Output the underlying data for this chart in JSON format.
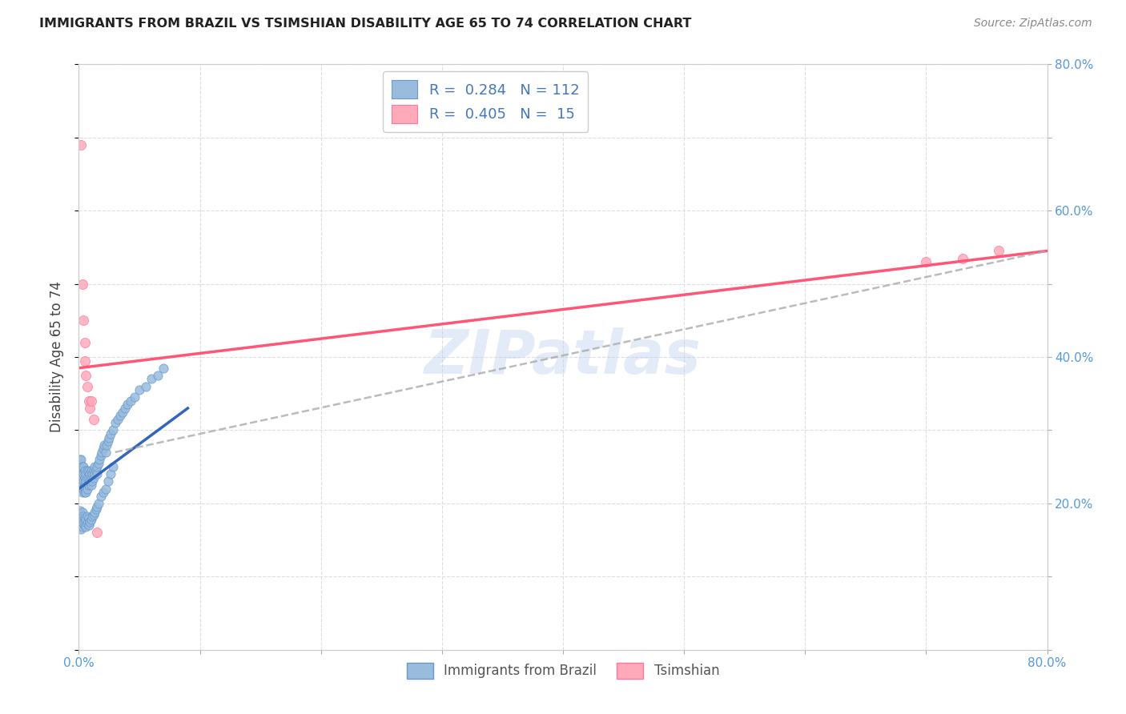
{
  "title": "IMMIGRANTS FROM BRAZIL VS TSIMSHIAN DISABILITY AGE 65 TO 74 CORRELATION CHART",
  "source": "Source: ZipAtlas.com",
  "ylabel": "Disability Age 65 to 74",
  "xlim": [
    0.0,
    0.8
  ],
  "ylim": [
    0.0,
    0.8
  ],
  "brazil_color": "#99BBDD",
  "brazil_edge_color": "#6699CC",
  "tsimshian_color": "#FFAABB",
  "tsimshian_edge_color": "#FF7799",
  "brazil_line_color": "#3366BB",
  "tsimshian_line_color": "#FF5577",
  "dash_line_color": "#AAAAAA",
  "watermark_color": "#BBCCEE",
  "grid_color": "#DDDDDD",
  "tick_color": "#5599DD",
  "background_color": "#ffffff",
  "legend_label_brazil": "Immigrants from Brazil",
  "legend_label_tsimshian": "Tsimshian",
  "brazil_R": "0.284",
  "brazil_N": "112",
  "tsimshian_R": "0.405",
  "tsimshian_N": "15",
  "brazil_scatter_x": [
    0.001,
    0.001,
    0.001,
    0.001,
    0.001,
    0.001,
    0.002,
    0.002,
    0.002,
    0.002,
    0.002,
    0.002,
    0.002,
    0.003,
    0.003,
    0.003,
    0.003,
    0.003,
    0.003,
    0.003,
    0.004,
    0.004,
    0.004,
    0.004,
    0.005,
    0.005,
    0.005,
    0.005,
    0.005,
    0.006,
    0.006,
    0.006,
    0.006,
    0.007,
    0.007,
    0.007,
    0.007,
    0.008,
    0.008,
    0.008,
    0.009,
    0.009,
    0.01,
    0.01,
    0.01,
    0.011,
    0.011,
    0.012,
    0.012,
    0.013,
    0.013,
    0.014,
    0.015,
    0.015,
    0.016,
    0.017,
    0.018,
    0.019,
    0.02,
    0.021,
    0.022,
    0.023,
    0.024,
    0.025,
    0.026,
    0.028,
    0.03,
    0.032,
    0.034,
    0.036,
    0.038,
    0.04,
    0.043,
    0.046,
    0.05,
    0.055,
    0.06,
    0.065,
    0.07,
    0.001,
    0.001,
    0.001,
    0.002,
    0.002,
    0.002,
    0.003,
    0.003,
    0.003,
    0.004,
    0.004,
    0.005,
    0.005,
    0.006,
    0.006,
    0.007,
    0.007,
    0.008,
    0.008,
    0.009,
    0.01,
    0.011,
    0.012,
    0.013,
    0.014,
    0.015,
    0.016,
    0.018,
    0.02,
    0.022,
    0.024,
    0.026,
    0.028
  ],
  "brazil_scatter_y": [
    0.24,
    0.25,
    0.23,
    0.22,
    0.26,
    0.245,
    0.23,
    0.24,
    0.25,
    0.225,
    0.235,
    0.245,
    0.26,
    0.22,
    0.23,
    0.24,
    0.25,
    0.225,
    0.235,
    0.215,
    0.22,
    0.23,
    0.24,
    0.25,
    0.225,
    0.235,
    0.245,
    0.22,
    0.215,
    0.22,
    0.23,
    0.24,
    0.215,
    0.225,
    0.235,
    0.245,
    0.22,
    0.225,
    0.235,
    0.245,
    0.23,
    0.24,
    0.225,
    0.235,
    0.245,
    0.23,
    0.24,
    0.235,
    0.245,
    0.24,
    0.25,
    0.245,
    0.24,
    0.25,
    0.255,
    0.26,
    0.265,
    0.27,
    0.275,
    0.28,
    0.27,
    0.28,
    0.285,
    0.29,
    0.295,
    0.3,
    0.31,
    0.315,
    0.32,
    0.325,
    0.33,
    0.335,
    0.34,
    0.345,
    0.355,
    0.36,
    0.37,
    0.375,
    0.385,
    0.17,
    0.18,
    0.19,
    0.165,
    0.175,
    0.185,
    0.168,
    0.178,
    0.188,
    0.172,
    0.182,
    0.17,
    0.18,
    0.168,
    0.178,
    0.172,
    0.182,
    0.17,
    0.18,
    0.175,
    0.178,
    0.182,
    0.185,
    0.188,
    0.192,
    0.195,
    0.2,
    0.21,
    0.215,
    0.22,
    0.23,
    0.24,
    0.25
  ],
  "tsimshian_scatter_x": [
    0.002,
    0.003,
    0.004,
    0.005,
    0.005,
    0.006,
    0.007,
    0.008,
    0.009,
    0.01,
    0.012,
    0.015,
    0.7,
    0.73,
    0.76
  ],
  "tsimshian_scatter_y": [
    0.69,
    0.5,
    0.45,
    0.42,
    0.395,
    0.375,
    0.36,
    0.34,
    0.33,
    0.34,
    0.315,
    0.16,
    0.53,
    0.535,
    0.545
  ],
  "brazil_line_x": [
    0.0,
    0.09
  ],
  "brazil_line_y": [
    0.22,
    0.33
  ],
  "tsimshian_line_x": [
    0.0,
    0.8
  ],
  "tsimshian_line_y": [
    0.385,
    0.545
  ],
  "dash_line_x": [
    0.03,
    0.8
  ],
  "dash_line_y": [
    0.27,
    0.545
  ]
}
